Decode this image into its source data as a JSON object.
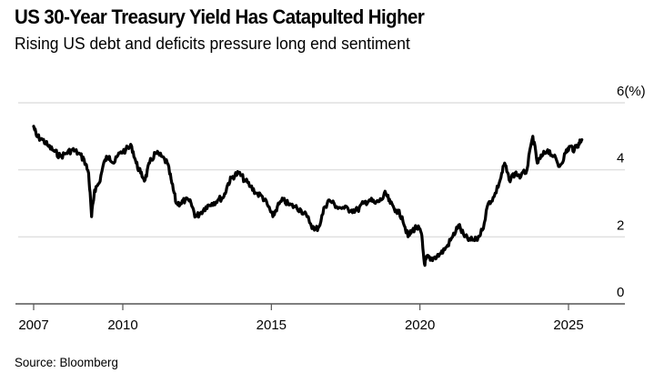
{
  "title": "US 30-Year Treasury Yield Has Catapulted Higher",
  "subtitle": "Rising US debt and deficits pressure long end sentiment",
  "source": "Source: Bloomberg",
  "chart_data": {
    "type": "line",
    "title": "US 30-Year Treasury Yield Has Catapulted Higher",
    "subtitle": "Rising US debt and deficits pressure long end sentiment",
    "xlabel": "",
    "ylabel": "(%)",
    "ylim": [
      0,
      6
    ],
    "xlim": [
      2006.95,
      2026.7
    ],
    "grid": true,
    "y_ticks": [
      0,
      2,
      4,
      6
    ],
    "y_tick_labels": [
      "0",
      "2",
      "4",
      "6(%)"
    ],
    "x_ticks": [
      2007,
      2010,
      2015,
      2020,
      2025
    ],
    "x_tick_labels": [
      "2007",
      "2010",
      "2015",
      "2020",
      "2025"
    ],
    "color": "#000000",
    "series": [
      {
        "name": "US 30-Year Treasury Yield",
        "x": [
          2007.0,
          2007.1,
          2007.3,
          2007.5,
          2007.7,
          2007.9,
          2008.1,
          2008.3,
          2008.5,
          2008.7,
          2008.85,
          2008.95,
          2009.05,
          2009.2,
          2009.4,
          2009.55,
          2009.7,
          2009.9,
          2010.1,
          2010.3,
          2010.45,
          2010.6,
          2010.75,
          2010.9,
          2011.1,
          2011.3,
          2011.5,
          2011.65,
          2011.8,
          2011.95,
          2012.1,
          2012.3,
          2012.45,
          2012.6,
          2012.8,
          2013.0,
          2013.2,
          2013.4,
          2013.55,
          2013.7,
          2013.9,
          2014.1,
          2014.3,
          2014.5,
          2014.7,
          2014.9,
          2015.05,
          2015.2,
          2015.4,
          2015.6,
          2015.8,
          2016.0,
          2016.2,
          2016.45,
          2016.6,
          2016.8,
          2016.95,
          2017.2,
          2017.45,
          2017.7,
          2017.9,
          2018.1,
          2018.3,
          2018.5,
          2018.7,
          2018.85,
          2019.0,
          2019.2,
          2019.4,
          2019.6,
          2019.75,
          2019.9,
          2020.05,
          2020.15,
          2020.25,
          2020.35,
          2020.5,
          2020.7,
          2020.9,
          2021.1,
          2021.3,
          2021.5,
          2021.7,
          2021.9,
          2022.1,
          2022.3,
          2022.5,
          2022.7,
          2022.85,
          2023.0,
          2023.2,
          2023.4,
          2023.6,
          2023.8,
          2023.95,
          2024.1,
          2024.3,
          2024.5,
          2024.7,
          2024.9,
          2025.05,
          2025.2,
          2025.35,
          2025.45
        ],
        "y": [
          5.3,
          5.0,
          4.9,
          4.7,
          4.55,
          4.4,
          4.5,
          4.6,
          4.5,
          4.3,
          3.9,
          2.6,
          3.4,
          3.6,
          4.3,
          4.4,
          4.2,
          4.5,
          4.6,
          4.7,
          4.2,
          3.9,
          3.7,
          4.2,
          4.5,
          4.4,
          4.2,
          3.6,
          3.0,
          3.0,
          3.1,
          3.0,
          2.6,
          2.7,
          2.9,
          3.0,
          3.1,
          3.2,
          3.6,
          3.8,
          3.9,
          3.7,
          3.5,
          3.3,
          3.2,
          2.9,
          2.6,
          2.9,
          3.1,
          2.95,
          2.9,
          2.8,
          2.6,
          2.2,
          2.3,
          2.9,
          3.1,
          2.9,
          2.85,
          2.8,
          2.8,
          3.0,
          3.1,
          3.0,
          3.1,
          3.3,
          3.0,
          2.8,
          2.6,
          2.0,
          2.2,
          2.3,
          2.1,
          1.2,
          1.4,
          1.3,
          1.4,
          1.5,
          1.7,
          2.0,
          2.35,
          2.0,
          1.9,
          1.9,
          2.2,
          3.0,
          3.2,
          3.7,
          4.2,
          3.7,
          3.9,
          3.8,
          4.0,
          5.0,
          4.2,
          4.4,
          4.6,
          4.4,
          4.1,
          4.5,
          4.7,
          4.6,
          4.8,
          4.9
        ]
      }
    ]
  }
}
